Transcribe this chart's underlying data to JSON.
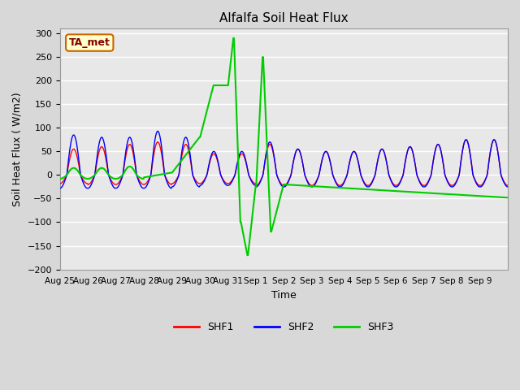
{
  "title": "Alfalfa Soil Heat Flux",
  "xlabel": "Time",
  "ylabel": "Soil Heat Flux ( W/m2)",
  "ylim": [
    -200,
    310
  ],
  "yticks": [
    -200,
    -150,
    -100,
    -50,
    0,
    50,
    100,
    150,
    200,
    250,
    300
  ],
  "bg_color": "#e8e8e8",
  "grid_color": "#ffffff",
  "annotation_text": "TA_met",
  "annotation_bg": "#ffffcc",
  "annotation_border": "#cc6600",
  "annotation_text_color": "#880000",
  "legend_entries": [
    "SHF1",
    "SHF2",
    "SHF3"
  ],
  "line_colors": [
    "#ff0000",
    "#0000ff",
    "#00cc00"
  ],
  "xtick_labels": [
    "Aug 25",
    "Aug 26",
    "Aug 27",
    "Aug 28",
    "Aug 29",
    "Aug 30",
    "Aug 31",
    "Sep 1",
    "Sep 2",
    "Sep 3",
    "Sep 4",
    "Sep 5",
    "Sep 6",
    "Sep 7",
    "Sep 8",
    "Sep 9"
  ],
  "n_days": 16,
  "pts_per_day": 48
}
